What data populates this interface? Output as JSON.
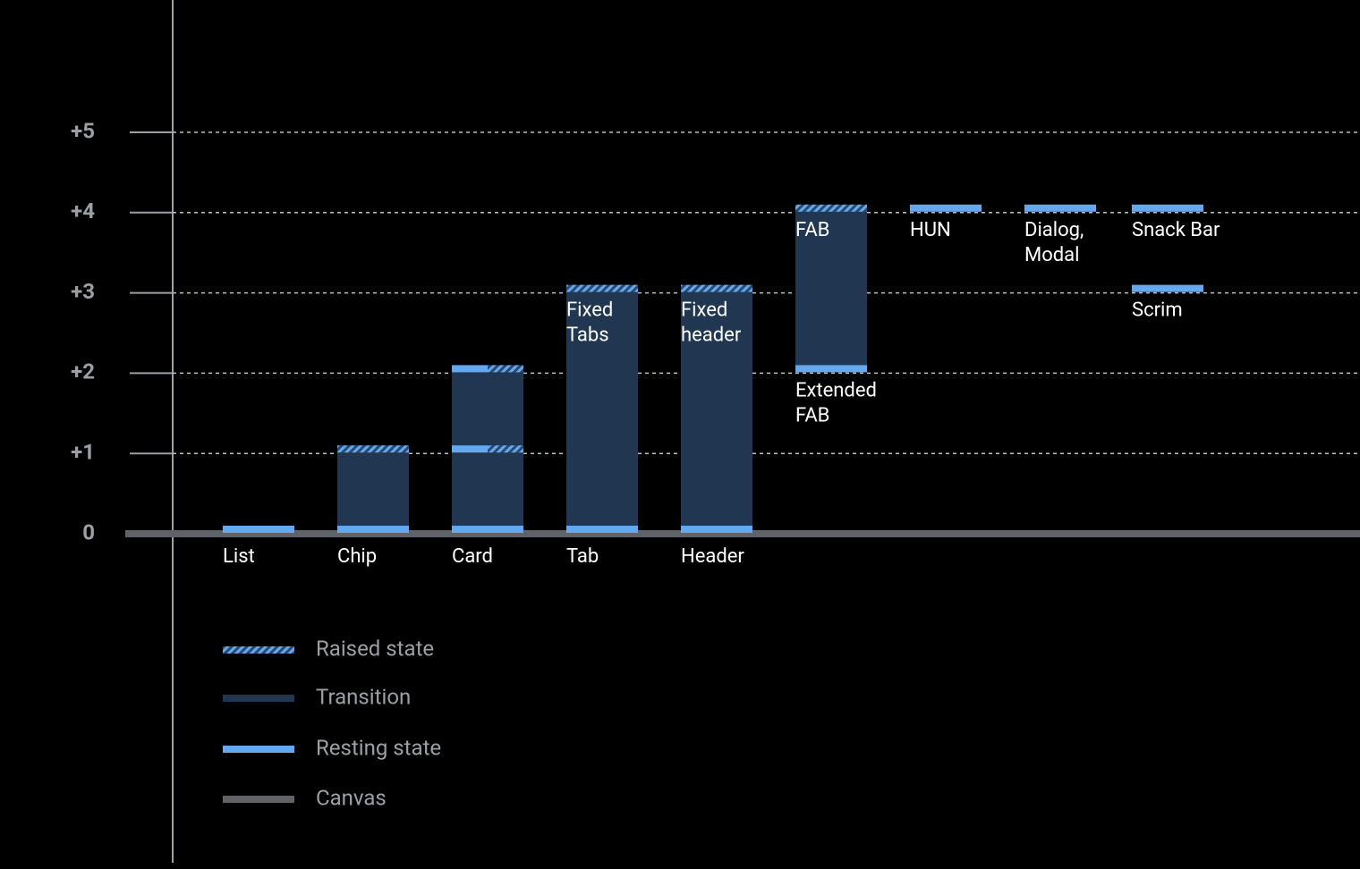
{
  "chart_data": {
    "type": "elevation",
    "ylim": [
      0,
      5
    ],
    "yticks": [
      0,
      {
        "value": 1,
        "label": "+1"
      },
      {
        "value": 2,
        "label": "+2"
      },
      {
        "value": 3,
        "label": "+3"
      },
      {
        "value": 4,
        "label": "+4"
      },
      {
        "value": 5,
        "label": "+5"
      }
    ],
    "grid": true,
    "colors": {
      "raised": "#64a9f0",
      "transition": "#213651",
      "resting": "#64a9f0",
      "canvas": "#5f6368"
    },
    "columns": [
      {
        "category": "List",
        "levels": [
          {
            "state": "resting",
            "level": 0
          }
        ]
      },
      {
        "category": "Chip",
        "levels": [
          {
            "state": "resting",
            "level": 0
          },
          {
            "state": "raised",
            "level": 1
          }
        ]
      },
      {
        "category": "Card",
        "levels": [
          {
            "state": "resting",
            "level": 0
          },
          {
            "state": "resting",
            "level": 1
          },
          {
            "state": "raised",
            "level": 1
          },
          {
            "state": "resting",
            "level": 2
          },
          {
            "state": "raised",
            "level": 2
          }
        ]
      },
      {
        "category": "Tab",
        "levels": [
          {
            "state": "resting",
            "level": 0
          },
          {
            "state": "raised",
            "level": 3,
            "label": [
              "Fixed",
              "Tabs"
            ]
          }
        ]
      },
      {
        "category": "Header",
        "levels": [
          {
            "state": "resting",
            "level": 0
          },
          {
            "state": "raised",
            "level": 3,
            "label": [
              "Fixed",
              "header"
            ]
          }
        ]
      },
      {
        "levels": [
          {
            "state": "resting",
            "level": 2,
            "label": [
              "Extended",
              "FAB"
            ]
          },
          {
            "state": "raised",
            "level": 4,
            "label": [
              "FAB"
            ]
          }
        ]
      },
      {
        "levels": [
          {
            "state": "resting",
            "level": 4,
            "label": [
              "HUN"
            ]
          }
        ]
      },
      {
        "levels": [
          {
            "state": "resting",
            "level": 4,
            "label": [
              "Dialog,",
              "Modal"
            ]
          }
        ]
      },
      {
        "levels": [
          {
            "state": "resting",
            "level": 4,
            "label": [
              "Snack Bar"
            ]
          },
          {
            "state": "resting",
            "level": 3,
            "label": [
              "Scrim"
            ]
          }
        ]
      }
    ],
    "legend": [
      {
        "name": "Raised state",
        "style": "raised"
      },
      {
        "name": "Transition",
        "style": "transition"
      },
      {
        "name": "Resting state",
        "style": "resting"
      },
      {
        "name": "Canvas",
        "style": "canvas"
      }
    ]
  }
}
